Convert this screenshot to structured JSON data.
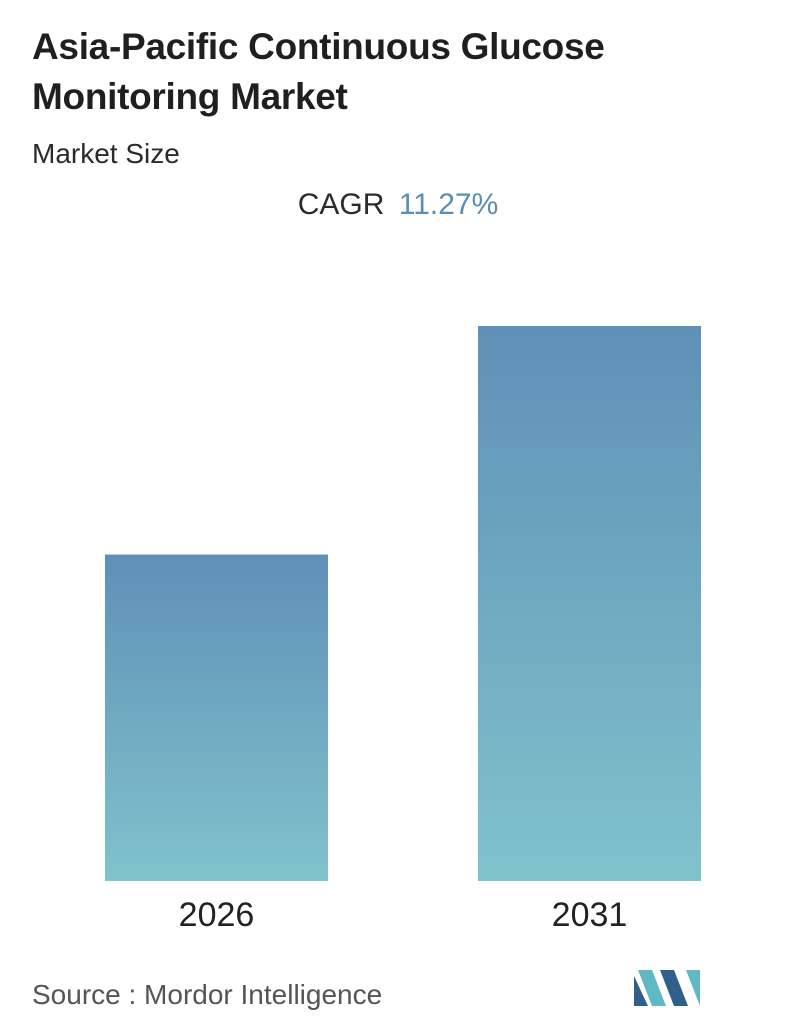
{
  "header": {
    "title": "Asia-Pacific Continuous Glucose Monitoring Market",
    "subtitle": "Market Size"
  },
  "cagr": {
    "label": "CAGR",
    "value": "11.27%"
  },
  "colors": {
    "bar_top": "#5f90b7",
    "bar_bottom": "#7fc3cb",
    "cagr_value": "#5b8db5",
    "logo_dark": "#2f5f8a",
    "logo_light": "#5fb8c4"
  },
  "chart_data": {
    "type": "bar",
    "categories": [
      "2026",
      "2031"
    ],
    "values": [
      1.0,
      1.7
    ],
    "ylim": [
      0,
      1.7
    ],
    "title": "",
    "xlabel": "",
    "ylabel": "",
    "grid": false,
    "legend": "none"
  },
  "footer": {
    "source": "Source :  Mordor Intelligence",
    "logo_icon": "mordor-intelligence-logo"
  }
}
